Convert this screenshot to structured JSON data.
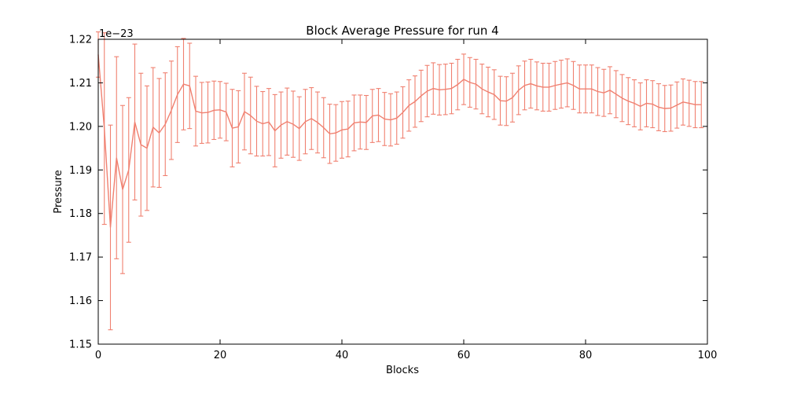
{
  "chart_data": {
    "type": "line",
    "title": "Block Average Pressure for run 4",
    "xlabel": "Blocks",
    "ylabel": "Pressure",
    "offset_text": "1e−23",
    "xlim": [
      0,
      100
    ],
    "ylim": [
      1.15,
      1.22
    ],
    "xticks": [
      0,
      20,
      40,
      60,
      80,
      100
    ],
    "yticks": [
      1.15,
      1.16,
      1.17,
      1.18,
      1.19,
      1.2,
      1.21,
      1.22
    ],
    "xtick_labels": [
      "0",
      "20",
      "40",
      "60",
      "80",
      "100"
    ],
    "ytick_labels": [
      "1.15",
      "1.16",
      "1.17",
      "1.18",
      "1.19",
      "1.20",
      "1.21",
      "1.22"
    ],
    "grid": false,
    "color": "#f08070",
    "x": [
      0,
      1,
      2,
      3,
      4,
      5,
      6,
      7,
      8,
      9,
      10,
      11,
      12,
      13,
      14,
      15,
      16,
      17,
      18,
      19,
      20,
      21,
      22,
      23,
      24,
      25,
      26,
      27,
      28,
      29,
      30,
      31,
      32,
      33,
      34,
      35,
      36,
      37,
      38,
      39,
      40,
      41,
      42,
      43,
      44,
      45,
      46,
      47,
      48,
      49,
      50,
      51,
      52,
      53,
      54,
      55,
      56,
      57,
      58,
      59,
      60,
      61,
      62,
      63,
      64,
      65,
      66,
      67,
      68,
      69,
      70,
      71,
      72,
      73,
      74,
      75,
      76,
      77,
      78,
      79,
      80,
      81,
      82,
      83,
      84,
      85,
      86,
      87,
      88,
      89,
      90,
      91,
      92,
      93,
      94,
      95,
      96,
      97,
      98,
      99
    ],
    "y": [
      1.2165,
      1.1995,
      1.1768,
      1.1928,
      1.1855,
      1.19,
      1.201,
      1.1958,
      1.195,
      1.1998,
      1.1985,
      1.2005,
      1.2037,
      1.2073,
      1.2097,
      1.2093,
      1.2035,
      1.2031,
      1.2032,
      1.2037,
      1.2038,
      1.2033,
      1.1996,
      1.1999,
      1.2034,
      1.2025,
      1.2012,
      1.2006,
      1.201,
      1.199,
      1.2003,
      1.2011,
      1.2005,
      1.1995,
      1.2011,
      1.2018,
      1.2009,
      1.1997,
      1.1983,
      1.1985,
      1.1992,
      1.1994,
      1.2008,
      1.201,
      1.2009,
      1.2024,
      1.2026,
      1.2017,
      1.2015,
      1.2019,
      1.2032,
      1.2048,
      1.2057,
      1.207,
      1.2081,
      1.2087,
      1.2084,
      1.2085,
      1.2087,
      1.2096,
      1.2108,
      1.2101,
      1.2097,
      1.2086,
      1.2079,
      1.2073,
      1.2059,
      1.2058,
      1.2066,
      1.2083,
      1.2094,
      1.2098,
      1.2093,
      1.209,
      1.209,
      1.2094,
      1.2097,
      1.21,
      1.2094,
      1.2086,
      1.2086,
      1.2086,
      1.208,
      1.2077,
      1.2083,
      1.2074,
      1.2065,
      1.2058,
      1.2053,
      1.2046,
      1.2053,
      1.2051,
      1.2044,
      1.2041,
      1.2042,
      1.2049,
      1.2056,
      1.2053,
      1.205,
      1.205
    ],
    "yerr": [
      0.0052,
      0.022,
      0.0235,
      0.0232,
      0.0193,
      0.0166,
      0.0179,
      0.0164,
      0.0143,
      0.0137,
      0.0125,
      0.0118,
      0.0113,
      0.011,
      0.0105,
      0.0098,
      0.008,
      0.007,
      0.007,
      0.0067,
      0.0065,
      0.0066,
      0.0089,
      0.0083,
      0.0088,
      0.0088,
      0.008,
      0.0074,
      0.0077,
      0.0083,
      0.0076,
      0.0077,
      0.0076,
      0.0073,
      0.0074,
      0.0071,
      0.007,
      0.0069,
      0.0068,
      0.0065,
      0.0065,
      0.0064,
      0.0064,
      0.0062,
      0.0062,
      0.0061,
      0.0061,
      0.0061,
      0.006,
      0.006,
      0.0059,
      0.0059,
      0.0059,
      0.0059,
      0.0059,
      0.0059,
      0.0058,
      0.0058,
      0.0058,
      0.0058,
      0.0058,
      0.0057,
      0.0057,
      0.0057,
      0.0057,
      0.0057,
      0.0056,
      0.0056,
      0.0056,
      0.0056,
      0.0056,
      0.0056,
      0.0055,
      0.0055,
      0.0055,
      0.0055,
      0.0055,
      0.0055,
      0.0055,
      0.0055,
      0.0055,
      0.0055,
      0.0055,
      0.0054,
      0.0054,
      0.0054,
      0.0054,
      0.0054,
      0.0054,
      0.0054,
      0.0054,
      0.0054,
      0.0054,
      0.0053,
      0.0053,
      0.0053,
      0.0053,
      0.0053,
      0.0053,
      0.0053
    ]
  }
}
